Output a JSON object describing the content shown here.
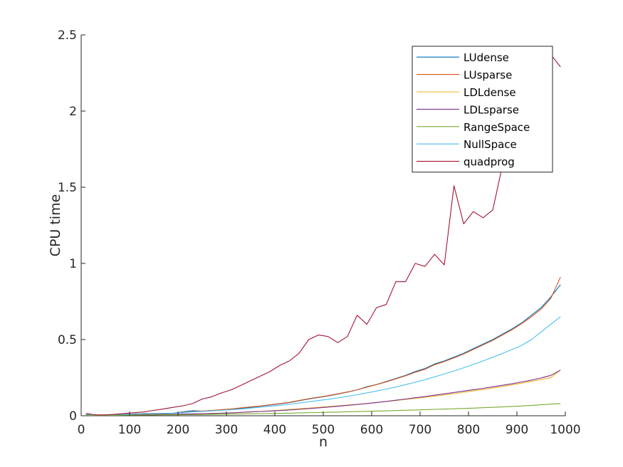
{
  "chart_data": {
    "type": "line",
    "title": "",
    "xlabel": "n",
    "ylabel": "CPU time",
    "xlim": [
      0,
      1000
    ],
    "ylim": [
      0,
      2.5
    ],
    "xticks": [
      "0",
      "100",
      "200",
      "300",
      "400",
      "500",
      "600",
      "700",
      "800",
      "900",
      "1000"
    ],
    "yticks": [
      "0",
      "0.5",
      "1",
      "1.5",
      "2",
      "2.5"
    ],
    "grid": false,
    "legend_position": "top-right",
    "x": [
      10,
      30,
      50,
      70,
      90,
      110,
      130,
      150,
      170,
      190,
      210,
      230,
      250,
      270,
      290,
      310,
      330,
      350,
      370,
      390,
      410,
      430,
      450,
      470,
      490,
      510,
      530,
      550,
      570,
      590,
      610,
      630,
      650,
      670,
      690,
      710,
      730,
      750,
      770,
      790,
      810,
      830,
      850,
      870,
      890,
      910,
      930,
      950,
      970,
      990
    ],
    "series": [
      {
        "name": "LUdense",
        "color": "#0072bd",
        "values": [
          0.01,
          0.005,
          0.005,
          0.008,
          0.01,
          0.012,
          0.015,
          0.015,
          0.015,
          0.017,
          0.025,
          0.033,
          0.03,
          0.035,
          0.038,
          0.042,
          0.048,
          0.055,
          0.062,
          0.07,
          0.078,
          0.086,
          0.098,
          0.11,
          0.12,
          0.13,
          0.142,
          0.155,
          0.17,
          0.19,
          0.205,
          0.225,
          0.245,
          0.265,
          0.29,
          0.31,
          0.34,
          0.36,
          0.385,
          0.41,
          0.44,
          0.47,
          0.5,
          0.535,
          0.57,
          0.61,
          0.66,
          0.71,
          0.78,
          0.86
        ]
      },
      {
        "name": "LUsparse",
        "color": "#d95319",
        "values": [
          0.01,
          0.005,
          0.005,
          0.008,
          0.01,
          0.012,
          0.015,
          0.015,
          0.015,
          0.017,
          0.022,
          0.028,
          0.03,
          0.035,
          0.04,
          0.045,
          0.052,
          0.058,
          0.064,
          0.072,
          0.08,
          0.088,
          0.1,
          0.112,
          0.122,
          0.132,
          0.144,
          0.156,
          0.17,
          0.188,
          0.204,
          0.222,
          0.242,
          0.262,
          0.285,
          0.305,
          0.335,
          0.355,
          0.38,
          0.405,
          0.435,
          0.465,
          0.495,
          0.53,
          0.565,
          0.605,
          0.65,
          0.7,
          0.77,
          0.91
        ]
      },
      {
        "name": "LDLdense",
        "color": "#edb120",
        "values": [
          0.005,
          0.003,
          0.004,
          0.005,
          0.006,
          0.007,
          0.008,
          0.008,
          0.009,
          0.01,
          0.011,
          0.012,
          0.013,
          0.015,
          0.017,
          0.019,
          0.022,
          0.025,
          0.028,
          0.032,
          0.036,
          0.041,
          0.046,
          0.05,
          0.055,
          0.06,
          0.065,
          0.07,
          0.075,
          0.081,
          0.087,
          0.093,
          0.1,
          0.107,
          0.114,
          0.121,
          0.129,
          0.137,
          0.145,
          0.154,
          0.163,
          0.172,
          0.182,
          0.192,
          0.203,
          0.214,
          0.226,
          0.238,
          0.251,
          0.3
        ]
      },
      {
        "name": "LDLsparse",
        "color": "#7e2f8e",
        "values": [
          0.005,
          0.003,
          0.004,
          0.005,
          0.006,
          0.007,
          0.008,
          0.008,
          0.009,
          0.01,
          0.011,
          0.012,
          0.013,
          0.015,
          0.017,
          0.019,
          0.022,
          0.025,
          0.028,
          0.031,
          0.034,
          0.038,
          0.042,
          0.047,
          0.052,
          0.057,
          0.062,
          0.068,
          0.074,
          0.08,
          0.087,
          0.094,
          0.102,
          0.11,
          0.118,
          0.126,
          0.135,
          0.144,
          0.153,
          0.162,
          0.171,
          0.18,
          0.19,
          0.2,
          0.21,
          0.222,
          0.234,
          0.248,
          0.265,
          0.3
        ]
      },
      {
        "name": "RangeSpace",
        "color": "#77ac30",
        "values": [
          0.003,
          0.002,
          0.003,
          0.003,
          0.004,
          0.004,
          0.005,
          0.005,
          0.006,
          0.006,
          0.007,
          0.007,
          0.008,
          0.009,
          0.01,
          0.011,
          0.012,
          0.013,
          0.014,
          0.015,
          0.016,
          0.017,
          0.019,
          0.02,
          0.021,
          0.023,
          0.024,
          0.026,
          0.027,
          0.029,
          0.031,
          0.032,
          0.034,
          0.036,
          0.038,
          0.04,
          0.042,
          0.044,
          0.046,
          0.048,
          0.05,
          0.053,
          0.055,
          0.058,
          0.061,
          0.064,
          0.068,
          0.072,
          0.076,
          0.08
        ]
      },
      {
        "name": "NullSpace",
        "color": "#4dbeee",
        "values": [
          0.01,
          0.005,
          0.005,
          0.008,
          0.01,
          0.012,
          0.015,
          0.015,
          0.015,
          0.017,
          0.02,
          0.025,
          0.028,
          0.032,
          0.036,
          0.04,
          0.044,
          0.05,
          0.056,
          0.062,
          0.068,
          0.075,
          0.083,
          0.092,
          0.1,
          0.108,
          0.117,
          0.127,
          0.138,
          0.15,
          0.162,
          0.175,
          0.189,
          0.204,
          0.22,
          0.237,
          0.255,
          0.274,
          0.294,
          0.315,
          0.337,
          0.36,
          0.384,
          0.409,
          0.435,
          0.462,
          0.5,
          0.55,
          0.6,
          0.65
        ]
      },
      {
        "name": "quadprog",
        "color": "#a2142f",
        "values": [
          0.015,
          0.005,
          0.005,
          0.01,
          0.015,
          0.02,
          0.025,
          0.035,
          0.045,
          0.055,
          0.065,
          0.08,
          0.11,
          0.125,
          0.15,
          0.17,
          0.2,
          0.23,
          0.26,
          0.29,
          0.33,
          0.36,
          0.41,
          0.5,
          0.53,
          0.52,
          0.48,
          0.52,
          0.66,
          0.6,
          0.71,
          0.73,
          0.88,
          0.88,
          1.0,
          0.98,
          1.06,
          0.99,
          1.51,
          1.26,
          1.34,
          1.3,
          1.35,
          1.64,
          1.85,
          1.95,
          2.1,
          2.3,
          2.37,
          2.29
        ]
      }
    ]
  }
}
